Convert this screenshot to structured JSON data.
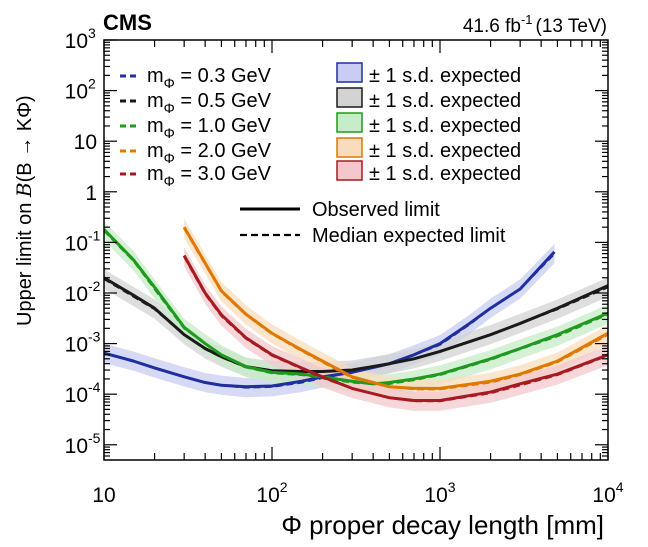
{
  "header": {
    "experiment": "CMS",
    "lumi": "41.6 fb",
    "lumi_sup": "-1",
    "energy": "(13 TeV)"
  },
  "colors": {
    "m03": "#1f2f9f",
    "m05": "#1a1a1a",
    "m10": "#1f9a1f",
    "m20": "#e07800",
    "m30": "#a81a22",
    "band_m03": "#c9cdf2",
    "band_m05": "#d3d3d3",
    "band_m10": "#c7ecc7",
    "band_m20": "#f8dcbc",
    "band_m30": "#f2c8cc"
  },
  "chart_data": {
    "type": "line",
    "title": "",
    "xlabel": "Φ proper decay length [mm]",
    "ylabel_prefix": "Upper limit on ",
    "ylabel_script": "B",
    "ylabel_suffix": "(B → KΦ)",
    "x_scale": "log",
    "y_scale": "log",
    "xlim": [
      10,
      10000
    ],
    "ylim": [
      5e-06,
      1000
    ],
    "x_ticks": [
      {
        "value": 10,
        "label": "10",
        "sup": ""
      },
      {
        "value": 100,
        "label": "10",
        "sup": "2"
      },
      {
        "value": 1000,
        "label": "10",
        "sup": "3"
      },
      {
        "value": 10000,
        "label": "10",
        "sup": "4"
      }
    ],
    "y_ticks": [
      {
        "value": 1e-05,
        "label": "10",
        "sup": "-5"
      },
      {
        "value": 0.0001,
        "label": "10",
        "sup": "-4"
      },
      {
        "value": 0.001,
        "label": "10",
        "sup": "-3"
      },
      {
        "value": 0.01,
        "label": "10",
        "sup": "-2"
      },
      {
        "value": 0.1,
        "label": "10",
        "sup": "-1"
      },
      {
        "value": 1,
        "label": "1",
        "sup": ""
      },
      {
        "value": 10,
        "label": "10",
        "sup": ""
      },
      {
        "value": 100,
        "label": "10",
        "sup": "2"
      },
      {
        "value": 1000,
        "label": "10",
        "sup": "3"
      }
    ],
    "legend_placement": "top",
    "legend": {
      "band_label": "± 1 s.d. expected",
      "observed_label": "Observed limit",
      "expected_label": "Median expected limit"
    },
    "series": [
      {
        "name": "0.3 GeV",
        "color_key": "m03",
        "band_color_key": "band_m03",
        "x": [
          10,
          15,
          20,
          30,
          40,
          50,
          70,
          100,
          150,
          200,
          300,
          500,
          700,
          1000,
          1500,
          2000,
          3000,
          4800
        ],
        "observed": [
          0.00065,
          0.00045,
          0.00033,
          0.00022,
          0.00017,
          0.00015,
          0.00014,
          0.000145,
          0.00018,
          0.00022,
          0.00027,
          0.0004,
          0.0006,
          0.001,
          0.0025,
          0.005,
          0.012,
          0.065
        ],
        "expected": [
          0.00064,
          0.00045,
          0.00033,
          0.00022,
          0.00017,
          0.00015,
          0.000135,
          0.00014,
          0.00017,
          0.00021,
          0.00027,
          0.0004,
          0.0006,
          0.00095,
          0.0024,
          0.005,
          0.012,
          0.06
        ]
      },
      {
        "name": "0.5 GeV",
        "color_key": "m05",
        "band_color_key": "band_m05",
        "x": [
          10,
          15,
          20,
          30,
          40,
          50,
          70,
          100,
          150,
          200,
          300,
          500,
          700,
          1000,
          2000,
          3000,
          5000,
          10000
        ],
        "observed": [
          0.02,
          0.009,
          0.005,
          0.0015,
          0.0008,
          0.00055,
          0.00035,
          0.00029,
          0.00028,
          0.00028,
          0.0003,
          0.0004,
          0.0005,
          0.0007,
          0.0015,
          0.0025,
          0.005,
          0.014
        ],
        "expected": [
          0.019,
          0.0085,
          0.0048,
          0.0015,
          0.00078,
          0.00054,
          0.00034,
          0.00029,
          0.00028,
          0.00028,
          0.0003,
          0.0004,
          0.0005,
          0.0007,
          0.0015,
          0.0025,
          0.0048,
          0.013
        ]
      },
      {
        "name": "1.0 GeV",
        "color_key": "m10",
        "band_color_key": "band_m10",
        "x": [
          10,
          15,
          20,
          30,
          40,
          50,
          70,
          100,
          150,
          200,
          300,
          400,
          500,
          700,
          1000,
          2000,
          3000,
          5000,
          10000
        ],
        "observed": [
          0.18,
          0.045,
          0.013,
          0.0021,
          0.001,
          0.0006,
          0.00035,
          0.00027,
          0.00025,
          0.00022,
          0.00018,
          0.00016,
          0.00017,
          0.0002,
          0.00025,
          0.0005,
          0.0008,
          0.0015,
          0.004
        ],
        "expected": [
          0.17,
          0.043,
          0.012,
          0.002,
          0.001,
          0.0006,
          0.00034,
          0.00026,
          0.00024,
          0.00021,
          0.00017,
          0.00016,
          0.00016,
          0.00019,
          0.00024,
          0.00048,
          0.00078,
          0.0014,
          0.0038
        ]
      },
      {
        "name": "2.0 GeV",
        "color_key": "m20",
        "band_color_key": "band_m20",
        "x": [
          30,
          50,
          70,
          100,
          150,
          200,
          300,
          500,
          700,
          1000,
          2000,
          3000,
          5000,
          10000
        ],
        "observed": [
          0.2,
          0.011,
          0.0038,
          0.0016,
          0.00075,
          0.00045,
          0.00022,
          0.00014,
          0.00013,
          0.00013,
          0.00018,
          0.00025,
          0.00045,
          0.0016
        ],
        "expected": [
          0.19,
          0.0105,
          0.0037,
          0.00155,
          0.00072,
          0.00043,
          0.00021,
          0.00014,
          0.000125,
          0.000125,
          0.00017,
          0.00024,
          0.00043,
          0.0015
        ]
      },
      {
        "name": "3.0 GeV",
        "color_key": "m30",
        "band_color_key": "band_m30",
        "x": [
          30,
          40,
          50,
          70,
          100,
          150,
          200,
          300,
          500,
          700,
          1000,
          2000,
          3000,
          5000,
          10000
        ],
        "observed": [
          0.055,
          0.01,
          0.0037,
          0.0013,
          0.0006,
          0.00033,
          0.00022,
          0.00013,
          8.5e-05,
          7.5e-05,
          7.5e-05,
          0.00011,
          0.00016,
          0.00025,
          0.0006
        ],
        "expected": [
          0.052,
          0.0095,
          0.0035,
          0.00125,
          0.00058,
          0.00032,
          0.00021,
          0.00013,
          8.5e-05,
          7.3e-05,
          7.3e-05,
          0.000105,
          0.00015,
          0.00024,
          0.00058
        ]
      }
    ]
  }
}
